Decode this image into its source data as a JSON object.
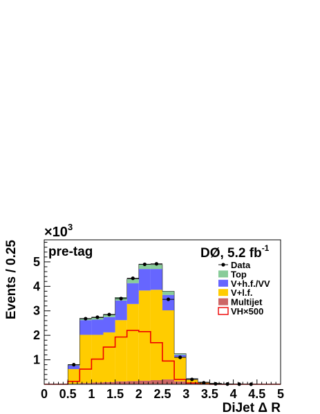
{
  "chart_data": {
    "type": "bar",
    "stacked": true,
    "multiplier_label": "×10",
    "multiplier_exp": "3",
    "xlabel": "DiJet Δ R",
    "ylabel": "Events / 0.25",
    "xlim": [
      0,
      5
    ],
    "ylim": [
      0,
      5.9
    ],
    "x_ticks": [
      "0",
      "0.5",
      "1",
      "1.5",
      "2",
      "2.5",
      "3",
      "3.5",
      "4",
      "4.5",
      "5"
    ],
    "y_ticks": [
      "1",
      "2",
      "3",
      "4",
      "5"
    ],
    "annotation_left": "pre-tag",
    "annotation_right_main": "DØ, 5.2 fb",
    "annotation_right_sup": "-1",
    "bin_edges": [
      0,
      0.25,
      0.5,
      0.75,
      1.0,
      1.25,
      1.5,
      1.75,
      2.0,
      2.25,
      2.5,
      2.75,
      3.0,
      3.25,
      3.5,
      3.75,
      4.0,
      4.25,
      4.5,
      4.75,
      5.0
    ],
    "series": [
      {
        "name": "Multijet",
        "color": "#cc6666",
        "values": [
          0,
          0,
          0.02,
          0.05,
          0.07,
          0.09,
          0.12,
          0.13,
          0.15,
          0.17,
          0.2,
          0.12,
          0.05,
          0.02,
          0.01,
          0.005,
          0,
          0,
          0,
          0
        ]
      },
      {
        "name": "V+l.f.",
        "color": "#ffcc00",
        "values": [
          0,
          0,
          0.6,
          1.97,
          1.95,
          2.03,
          2.5,
          3.15,
          3.68,
          3.69,
          2.82,
          1.0,
          0.15,
          0.06,
          0.03,
          0.01,
          0.005,
          0,
          0,
          0
        ]
      },
      {
        "name": "V+h.f./VV",
        "color": "#6666ff",
        "values": [
          0,
          0,
          0.15,
          0.6,
          0.62,
          0.62,
          0.8,
          0.85,
          0.88,
          0.85,
          0.63,
          0.08,
          0.03,
          0.01,
          0.005,
          0,
          0,
          0,
          0,
          0
        ]
      },
      {
        "name": "Top",
        "color": "#88cc99",
        "values": [
          0,
          0,
          0.02,
          0.07,
          0.08,
          0.1,
          0.13,
          0.17,
          0.19,
          0.18,
          0.15,
          0.05,
          0.01,
          0,
          0,
          0,
          0,
          0,
          0,
          0
        ]
      }
    ],
    "signal": {
      "name": "VH×500",
      "color": "#ee0000",
      "values": [
        0,
        0,
        0.12,
        0.62,
        1.03,
        1.52,
        1.93,
        2.2,
        2.15,
        1.7,
        0.95,
        0.2,
        0.05,
        0.01,
        0,
        0,
        0,
        0,
        0,
        0
      ]
    },
    "data_points": {
      "name": "Data",
      "x": [
        0.625,
        0.875,
        1.125,
        1.375,
        1.625,
        1.875,
        2.125,
        2.375,
        2.625,
        2.875,
        3.125,
        3.375,
        3.625,
        3.875,
        4.125,
        4.375
      ],
      "y": [
        0.8,
        2.68,
        2.74,
        2.85,
        3.5,
        4.33,
        4.9,
        4.92,
        3.47,
        1.1,
        0.2,
        0.06,
        0.02,
        0.01,
        0.005,
        0.002
      ]
    },
    "legend_placement": "top-right",
    "legend": [
      {
        "label": "Data",
        "kind": "marker"
      },
      {
        "label": "Top",
        "kind": "fill",
        "color": "#88cc99"
      },
      {
        "label": "V+h.f./VV",
        "kind": "fill",
        "color": "#6666ff"
      },
      {
        "label": "V+l.f.",
        "kind": "fill",
        "color": "#ffcc00"
      },
      {
        "label": "Multijet",
        "kind": "fill",
        "color": "#cc6666"
      },
      {
        "label": "VH×500",
        "kind": "line",
        "color": "#ee0000"
      }
    ]
  }
}
